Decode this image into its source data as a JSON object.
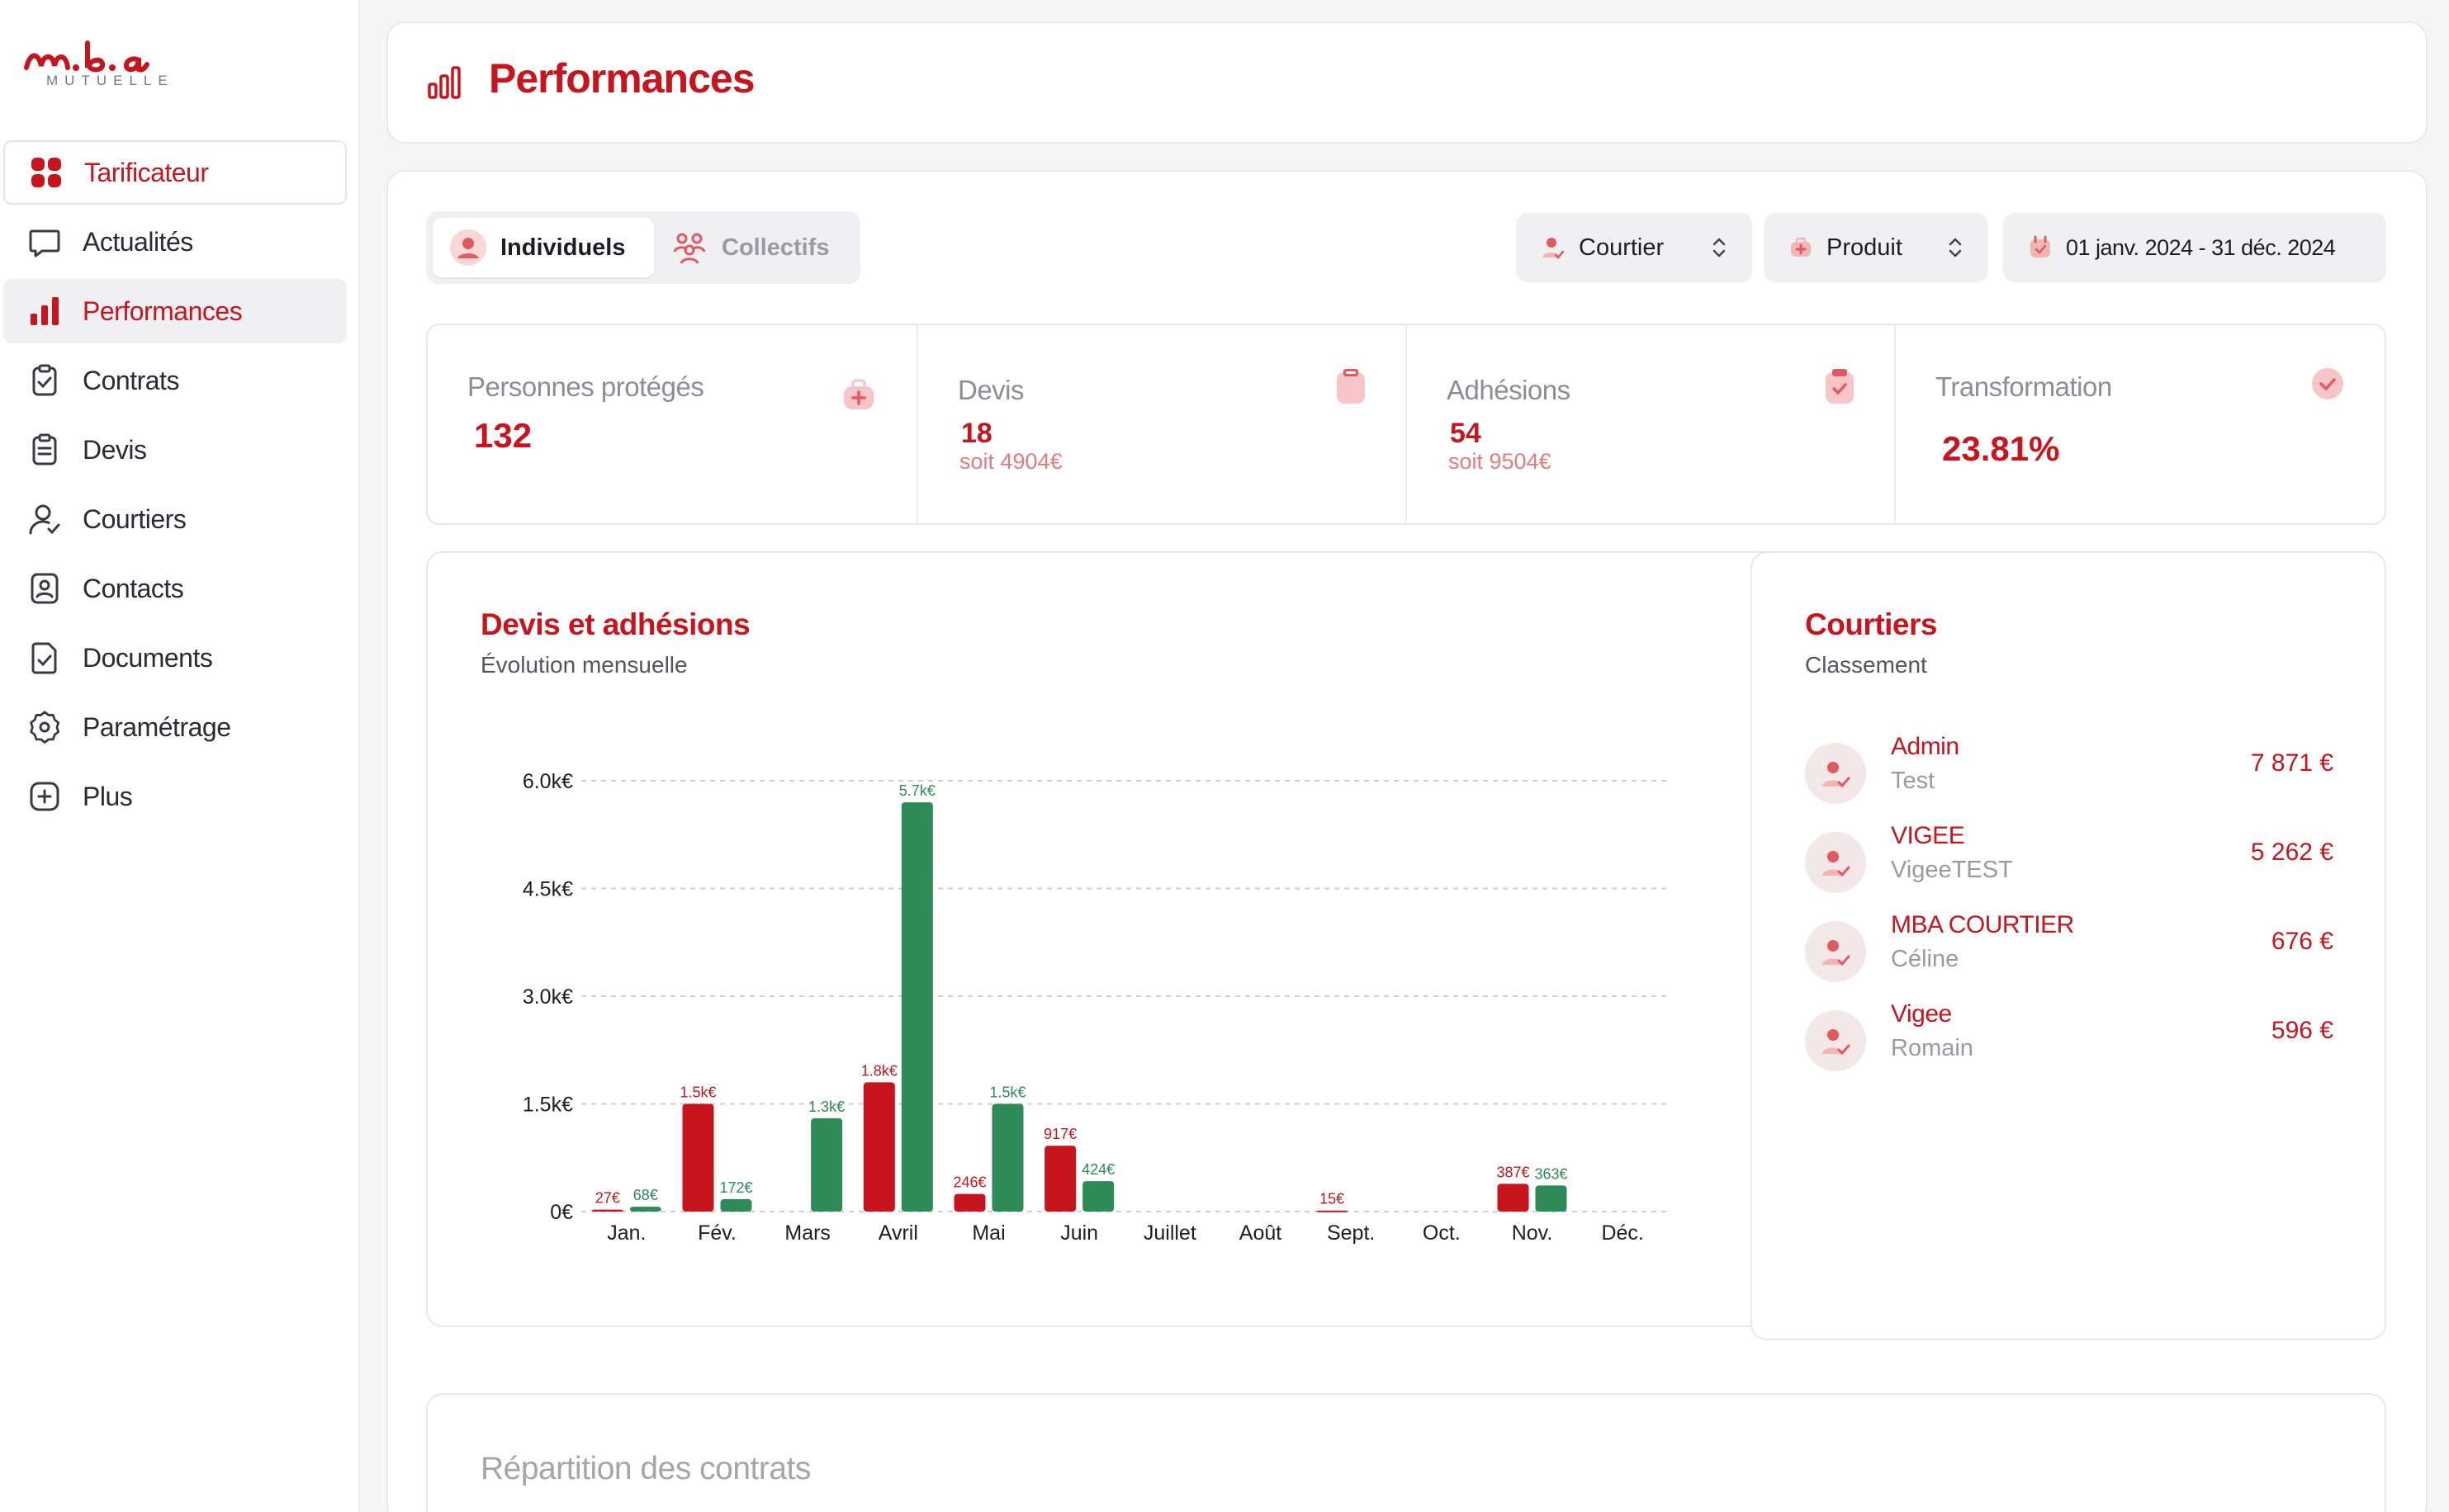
{
  "logo": {
    "text": "m.b.a",
    "sub": "MUTUELLE"
  },
  "sidebar": {
    "items": [
      {
        "label": "Tarificateur",
        "icon": "grid-icon"
      },
      {
        "label": "Actualités",
        "icon": "chat-icon"
      },
      {
        "label": "Performances",
        "icon": "bar-chart-icon"
      },
      {
        "label": "Contrats",
        "icon": "clipboard-check-icon"
      },
      {
        "label": "Devis",
        "icon": "clipboard-list-icon"
      },
      {
        "label": "Courtiers",
        "icon": "user-check-icon"
      },
      {
        "label": "Contacts",
        "icon": "contact-card-icon"
      },
      {
        "label": "Documents",
        "icon": "document-check-icon"
      },
      {
        "label": "Paramétrage",
        "icon": "settings-icon"
      },
      {
        "label": "Plus",
        "icon": "plus-square-icon"
      }
    ]
  },
  "header": {
    "title": "Performances"
  },
  "segment": {
    "individuels": "Individuels",
    "collectifs": "Collectifs"
  },
  "filters": {
    "courtier": "Courtier",
    "produit": "Produit",
    "date_range": "01 janv. 2024 - 31 déc. 2024"
  },
  "kpis": {
    "personnes": {
      "label": "Personnes protégés",
      "value": "132"
    },
    "devis": {
      "label": "Devis",
      "value": "18",
      "sub": "soit 4904€"
    },
    "adhesions": {
      "label": "Adhésions",
      "value": "54",
      "sub": "soit 9504€"
    },
    "transformation": {
      "label": "Transformation",
      "value": "23.81%"
    }
  },
  "chart_card": {
    "title": "Devis et adhésions",
    "subtitle": "Évolution mensuelle"
  },
  "chart_data": {
    "type": "bar",
    "categories": [
      "Jan.",
      "Fév.",
      "Mars",
      "Avril",
      "Mai",
      "Juin",
      "Juillet",
      "Août",
      "Sept.",
      "Oct.",
      "Nov.",
      "Déc."
    ],
    "series": [
      {
        "color": "#c8151d",
        "values": [
          27,
          1500,
          0,
          1800,
          246,
          917,
          0,
          0,
          15,
          0,
          387,
          0
        ],
        "labels": [
          "27€",
          "1.5k€",
          "",
          "1.8k€",
          "246€",
          "917€",
          "",
          "",
          "15€",
          "",
          "387€",
          ""
        ]
      },
      {
        "color": "#2e8b57",
        "values": [
          68,
          172,
          1300,
          5700,
          1500,
          424,
          0,
          0,
          0,
          0,
          363,
          0
        ],
        "labels": [
          "68€",
          "172€",
          "1.3k€",
          "5.7k€",
          "1.5k€",
          "424€",
          "",
          "",
          "",
          "",
          "363€",
          ""
        ]
      }
    ],
    "yticks": [
      "0€",
      "1.5k€",
      "3.0k€",
      "4.5k€",
      "6.0k€"
    ],
    "ylim": [
      0,
      6000
    ],
    "grid": true
  },
  "courtiers": {
    "title": "Courtiers",
    "subtitle": "Classement",
    "rows": [
      {
        "name": "Admin",
        "sub": "Test",
        "amount": "7 871 €"
      },
      {
        "name": "VIGEE",
        "sub": "VigeeTEST",
        "amount": "5 262 €"
      },
      {
        "name": "MBA COURTIER",
        "sub": "Céline",
        "amount": "676 €"
      },
      {
        "name": "Vigee",
        "sub": "Romain",
        "amount": "596 €"
      }
    ]
  },
  "repartition": {
    "title": "Répartition des contrats"
  },
  "colors": {
    "brand": "#c8151d",
    "green": "#2e8b57"
  }
}
